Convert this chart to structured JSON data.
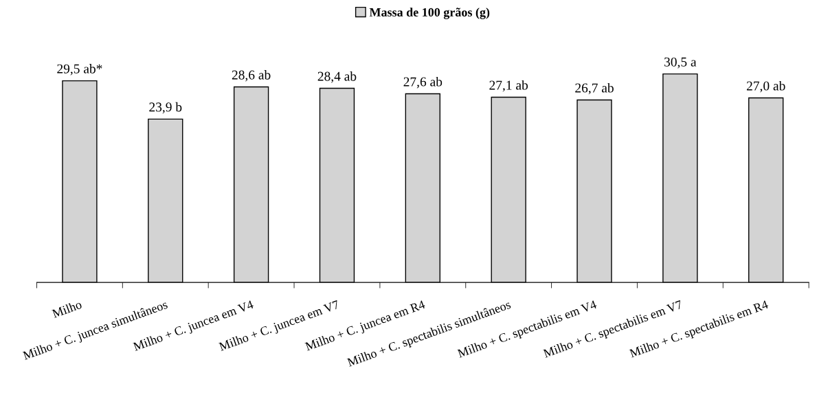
{
  "chart_data": {
    "type": "bar",
    "categories": [
      "Milho",
      "Milho + C. juncea simultâneos",
      "Milho + C. juncea em V4",
      "Milho + C. juncea em V7",
      "Milho + C. juncea em R4",
      "Milho + C. spectabilis simultâneos",
      "Milho + C. spectabilis em V4",
      "Milho + C. spectabilis em V7",
      "Milho + C. spectabilis em R4"
    ],
    "series": [
      {
        "name": "Massa de 100 grãos (g)",
        "color": "#d3d3d3",
        "values": [
          29.5,
          23.9,
          28.6,
          28.4,
          27.6,
          27.1,
          26.7,
          30.5,
          27.0
        ],
        "value_labels": [
          "29,5 ab*",
          "23,9 b",
          "28,6 ab",
          "28,4 ab",
          "27,6 ab",
          "27,1 ab",
          "26,7 ab",
          "30,5 a",
          "27,0 ab"
        ]
      }
    ],
    "legend": "top",
    "grid": false,
    "tick_labels": "x"
  }
}
